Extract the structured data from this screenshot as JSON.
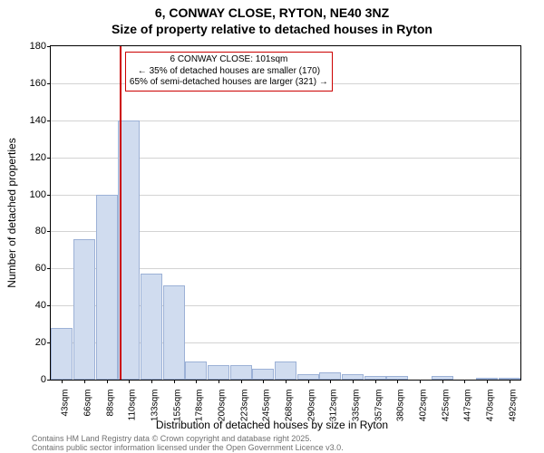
{
  "title_main": "6, CONWAY CLOSE, RYTON, NE40 3NZ",
  "title_sub": "Size of property relative to detached houses in Ryton",
  "y_axis_label": "Number of detached properties",
  "x_axis_label": "Distribution of detached houses by size in Ryton",
  "footer_line1": "Contains HM Land Registry data © Crown copyright and database right 2025.",
  "footer_line2": "Contains public sector information licensed under the Open Government Licence v3.0.",
  "chart": {
    "type": "histogram",
    "background_color": "#ffffff",
    "grid_color": "#d3d3d3",
    "axis_color": "#000000",
    "bar_fill": "#d0dcef",
    "bar_stroke": "#9cb1d6",
    "ref_line_color": "#cc0000",
    "annotation_border": "#cc0000",
    "ylim": [
      0,
      180
    ],
    "ytick_step": 20,
    "x_categories": [
      "43sqm",
      "66sqm",
      "88sqm",
      "110sqm",
      "133sqm",
      "155sqm",
      "178sqm",
      "200sqm",
      "223sqm",
      "245sqm",
      "268sqm",
      "290sqm",
      "312sqm",
      "335sqm",
      "357sqm",
      "380sqm",
      "402sqm",
      "425sqm",
      "447sqm",
      "470sqm",
      "492sqm"
    ],
    "values": [
      28,
      76,
      100,
      140,
      57,
      51,
      10,
      8,
      8,
      6,
      10,
      3,
      4,
      3,
      2,
      2,
      0,
      2,
      0,
      1,
      1
    ],
    "ref_line_x_value": 101,
    "x_min_value": 43,
    "x_step": 22.5,
    "bar_width_relative": 0.98,
    "annotation_lines": [
      "6 CONWAY CLOSE: 101sqm",
      "← 35% of detached houses are smaller (170)",
      "65% of semi-detached houses are larger (321) →"
    ],
    "title_fontsize": 14,
    "axis_label_fontsize": 12,
    "tick_fontsize": 11,
    "x_tick_fontsize": 10,
    "footer_fontsize": 9
  }
}
